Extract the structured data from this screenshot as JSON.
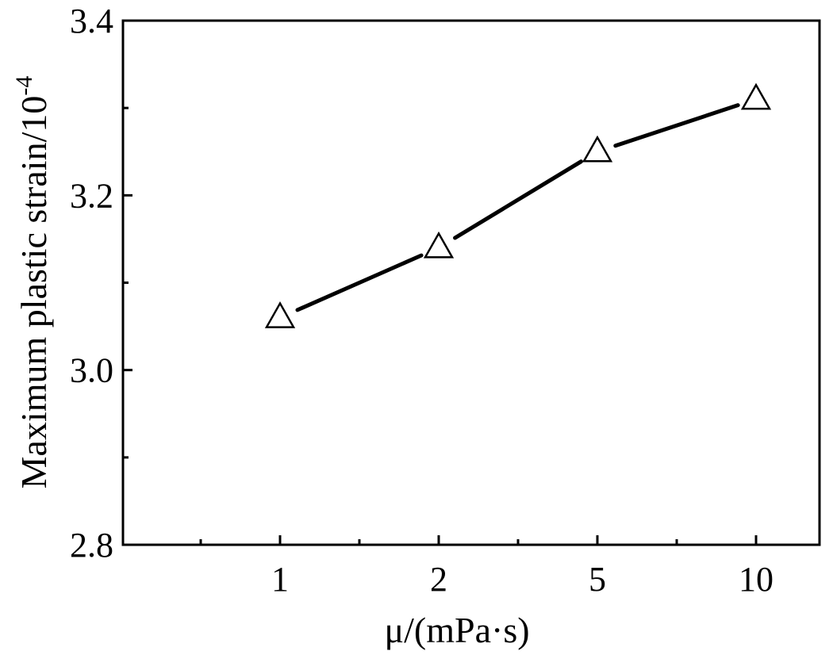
{
  "chart_data": {
    "type": "line",
    "xlabel": "μ/(mPa·s)",
    "ylabel": "Maximum plastic strain/10",
    "ylabel_exponent": "-4",
    "categories": [
      "1",
      "2",
      "5",
      "10"
    ],
    "series": [
      {
        "values": [
          3.06,
          3.14,
          3.25,
          3.31
        ],
        "marker": "open-triangle",
        "color": "#000000"
      }
    ],
    "ylim": [
      2.8,
      3.4
    ],
    "yticks": [
      "2.8",
      "3.0",
      "3.2",
      "3.4"
    ],
    "y_minor_ticks": [
      2.9,
      3.1,
      3.3
    ],
    "grid": false,
    "legend": "none"
  }
}
